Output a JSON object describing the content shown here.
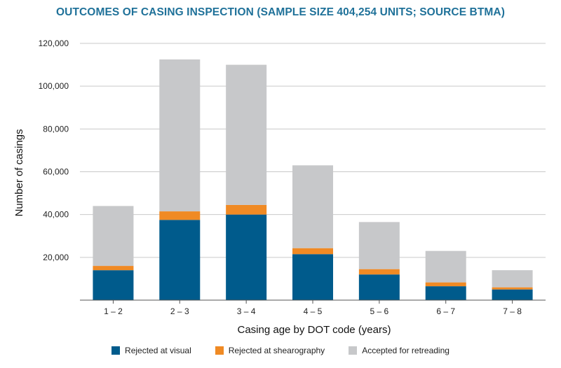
{
  "chart_data": {
    "type": "bar",
    "stacked": true,
    "title": "OUTCOMES OF CASING INSPECTION (SAMPLE SIZE 404,254 UNITS; SOURCE BTMA)",
    "xlabel": "Casing age by DOT code (years)",
    "ylabel": "Number of casings",
    "ylim": [
      0,
      120000
    ],
    "yticks": [
      "",
      "20,000",
      "40,000",
      "60,000",
      "80,000",
      "100,000",
      "120,000"
    ],
    "grid": true,
    "legend_position": "bottom",
    "categories": [
      "1 – 2",
      "2 – 3",
      "3 – 4",
      "4 – 5",
      "5 – 6",
      "6 – 7",
      "7 – 8"
    ],
    "series": [
      {
        "name": "Rejected at visual",
        "color": "#005b8c",
        "values": [
          14000,
          37500,
          40000,
          21500,
          12000,
          6500,
          5000
        ]
      },
      {
        "name": "Rejected at shearography",
        "color": "#f08a24",
        "values": [
          2000,
          4000,
          4500,
          2800,
          2500,
          1800,
          1000
        ]
      },
      {
        "name": "Accepted for retreading",
        "color": "#c7c8ca",
        "values": [
          28000,
          71000,
          65500,
          38700,
          22000,
          14700,
          8000
        ]
      }
    ]
  }
}
